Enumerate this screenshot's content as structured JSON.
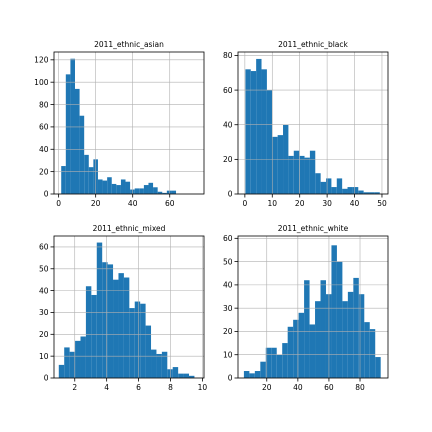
{
  "chart_data": [
    {
      "type": "bar",
      "title": "2011_ethnic_asian",
      "xlim": [
        -2.5,
        78.5
      ],
      "ylim": [
        0,
        127
      ],
      "xticks": [
        0,
        20,
        40,
        60
      ],
      "yticks": [
        0,
        20,
        40,
        60,
        80,
        100,
        120
      ],
      "grid": true,
      "color": "#1f77b4",
      "bin_start": 1.4,
      "bin_width": 2.48,
      "values": [
        25,
        107,
        121,
        94,
        70,
        35,
        24,
        31,
        13,
        12,
        15,
        9,
        8,
        13,
        11,
        4,
        5,
        5,
        8,
        10,
        6,
        2,
        1,
        3,
        3
      ]
    },
    {
      "type": "bar",
      "title": "2011_ethnic_black",
      "xlim": [
        -2.5,
        52.2
      ],
      "ylim": [
        0,
        82
      ],
      "xticks": [
        0,
        10,
        20,
        30,
        40,
        50
      ],
      "yticks": [
        0,
        20,
        40,
        60,
        80
      ],
      "grid": true,
      "color": "#1f77b4",
      "bin_start": 0.2,
      "bin_width": 1.96,
      "values": [
        72,
        71,
        78,
        72,
        60,
        33,
        34,
        40,
        22,
        25,
        22,
        21,
        25,
        12,
        7,
        9,
        4,
        9,
        3,
        4,
        4,
        2,
        1,
        1,
        1
      ]
    },
    {
      "type": "bar",
      "title": "2011_ethnic_mixed",
      "xlim": [
        0.7,
        10.1
      ],
      "ylim": [
        0,
        65
      ],
      "xticks": [
        2,
        4,
        6,
        8,
        10
      ],
      "yticks": [
        0,
        10,
        20,
        30,
        40,
        50,
        60
      ],
      "grid": true,
      "color": "#1f77b4",
      "bin_start": 1.0,
      "bin_width": 0.34,
      "values": [
        6,
        14,
        12,
        17,
        19,
        42,
        38,
        62,
        53,
        52,
        45,
        48,
        46,
        32,
        35,
        34,
        24,
        13,
        11,
        12,
        4,
        5,
        2,
        2,
        1
      ]
    },
    {
      "type": "bar",
      "title": "2011_ethnic_white",
      "xlim": [
        1.5,
        98
      ],
      "ylim": [
        0,
        61
      ],
      "xticks": [
        20,
        40,
        60,
        80
      ],
      "yticks": [
        0,
        10,
        20,
        30,
        40,
        50,
        60
      ],
      "grid": true,
      "color": "#1f77b4",
      "bin_start": 5.3,
      "bin_width": 3.52,
      "values": [
        3,
        2,
        3,
        7,
        13,
        13,
        10,
        15,
        22,
        25,
        28,
        42,
        23,
        33,
        42,
        36,
        57,
        50,
        33,
        37,
        43,
        36,
        24,
        21,
        9
      ]
    }
  ]
}
